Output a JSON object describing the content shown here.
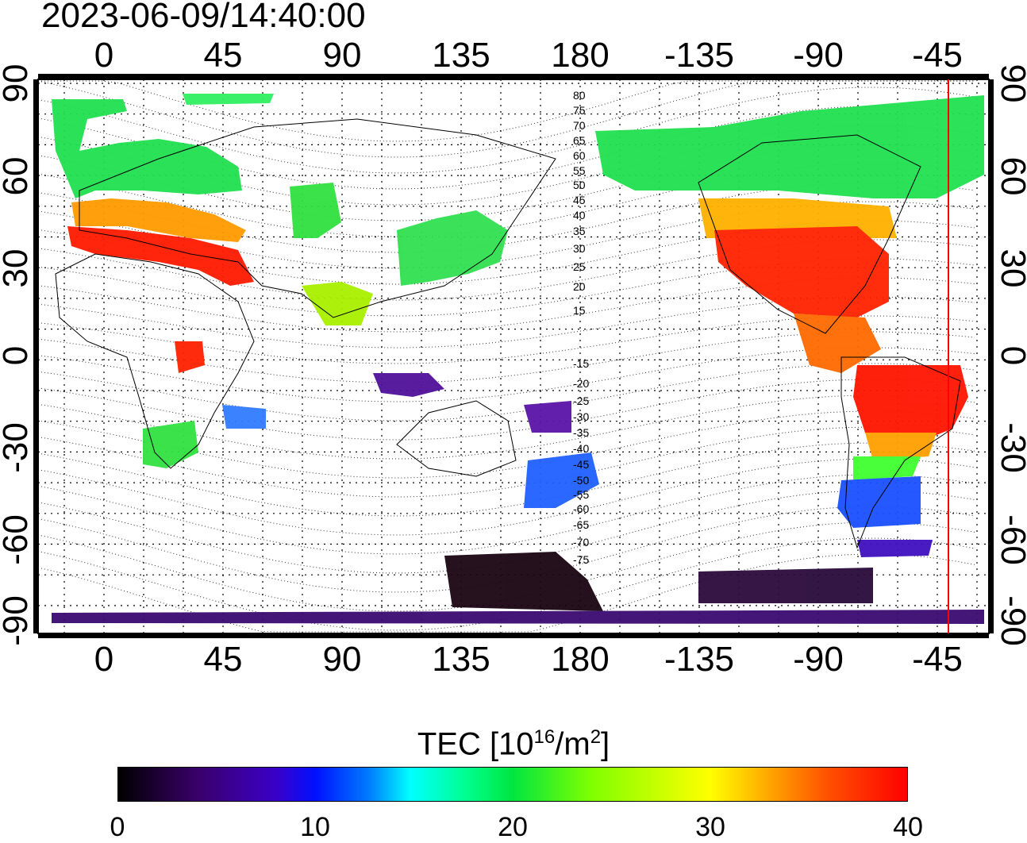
{
  "timestamp": "2023-06-09/14:40:00",
  "map": {
    "longitude_labels": [
      "0",
      "45",
      "90",
      "135",
      "180",
      "-135",
      "-90",
      "-45"
    ],
    "latitude_labels": [
      "90",
      "60",
      "30",
      "0",
      "-30",
      "-60",
      "-90"
    ],
    "magnetic_latitude_labels_north": [
      "80",
      "75",
      "70",
      "65",
      "60",
      "55",
      "50",
      "45",
      "40",
      "35",
      "30",
      "25",
      "20",
      "15"
    ],
    "magnetic_latitude_labels_south": [
      "-15",
      "-20",
      "-25",
      "-30",
      "-35",
      "-40",
      "-45",
      "-50",
      "-55",
      "-60",
      "-65",
      "-70",
      "-75"
    ],
    "terminator_color": "#ff0000"
  },
  "legend": {
    "title_main": "TEC  [10",
    "title_sup1": "16",
    "title_mid": "/m",
    "title_sup2": "2",
    "title_end": "]",
    "ticks": [
      "0",
      "10",
      "20",
      "30",
      "40"
    ],
    "range": [
      0,
      40
    ]
  }
}
